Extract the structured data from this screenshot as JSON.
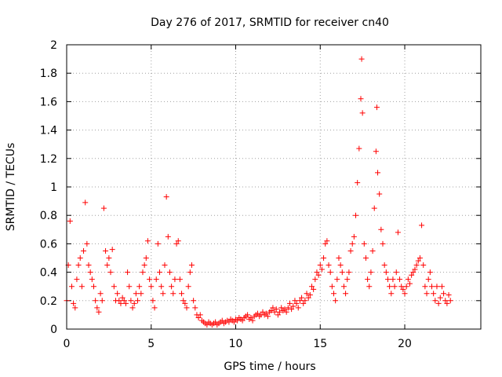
{
  "chart_data": {
    "type": "scatter",
    "title": "Day 276 of 2017, SRMTID for receiver cn40",
    "xlabel": "GPS time / hours",
    "ylabel": "SRMTID / TECUs",
    "xlim": [
      0,
      24.5
    ],
    "ylim": [
      0,
      2
    ],
    "x_ticks": [
      0,
      5,
      10,
      15,
      20
    ],
    "x_tick_labels": [
      "0",
      "5",
      "10",
      "15",
      "20"
    ],
    "y_ticks": [
      0,
      0.2,
      0.4,
      0.6,
      0.8,
      1,
      1.2,
      1.4,
      1.6,
      1.8,
      2
    ],
    "y_tick_labels": [
      "0",
      "0.2",
      "0.4",
      "0.6",
      "0.8",
      "1",
      "1.2",
      "1.4",
      "1.6",
      "1.8",
      "2"
    ],
    "grid": true,
    "marker": "+",
    "color": "#ff0000",
    "series": [
      {
        "name": "SRMTID",
        "x": [
          0.0,
          0.1,
          0.2,
          0.3,
          0.4,
          0.5,
          0.6,
          0.7,
          0.8,
          0.9,
          1.0,
          1.1,
          1.2,
          1.3,
          1.4,
          1.5,
          1.6,
          1.7,
          1.8,
          1.9,
          2.0,
          2.1,
          2.2,
          2.3,
          2.4,
          2.5,
          2.6,
          2.7,
          2.8,
          2.9,
          3.0,
          3.1,
          3.2,
          3.3,
          3.4,
          3.5,
          3.6,
          3.7,
          3.8,
          3.9,
          4.0,
          4.1,
          4.2,
          4.3,
          4.4,
          4.5,
          4.6,
          4.7,
          4.8,
          4.9,
          5.0,
          5.1,
          5.2,
          5.3,
          5.4,
          5.5,
          5.6,
          5.7,
          5.8,
          5.9,
          6.0,
          6.1,
          6.2,
          6.3,
          6.4,
          6.5,
          6.6,
          6.7,
          6.8,
          6.9,
          7.0,
          7.1,
          7.2,
          7.3,
          7.4,
          7.5,
          7.6,
          7.7,
          7.8,
          7.9,
          8.0,
          8.1,
          8.2,
          8.3,
          8.4,
          8.5,
          8.6,
          8.7,
          8.8,
          8.9,
          9.0,
          9.1,
          9.2,
          9.3,
          9.4,
          9.5,
          9.6,
          9.7,
          9.8,
          9.9,
          10.0,
          10.1,
          10.2,
          10.3,
          10.4,
          10.5,
          10.6,
          10.7,
          10.8,
          10.9,
          11.0,
          11.1,
          11.2,
          11.3,
          11.4,
          11.5,
          11.6,
          11.7,
          11.8,
          11.9,
          12.0,
          12.1,
          12.2,
          12.3,
          12.4,
          12.5,
          12.6,
          12.7,
          12.8,
          12.9,
          13.0,
          13.1,
          13.2,
          13.3,
          13.4,
          13.5,
          13.6,
          13.7,
          13.8,
          13.9,
          14.0,
          14.1,
          14.2,
          14.3,
          14.4,
          14.5,
          14.6,
          14.7,
          14.8,
          14.9,
          15.0,
          15.1,
          15.2,
          15.3,
          15.4,
          15.5,
          15.6,
          15.7,
          15.8,
          15.9,
          16.0,
          16.1,
          16.2,
          16.3,
          16.4,
          16.5,
          16.6,
          16.7,
          16.8,
          16.9,
          17.0,
          17.1,
          17.2,
          17.3,
          17.4,
          17.45,
          17.5,
          17.6,
          17.7,
          17.8,
          17.9,
          18.0,
          18.1,
          18.2,
          18.3,
          18.35,
          18.4,
          18.5,
          18.6,
          18.7,
          18.8,
          18.9,
          19.0,
          19.1,
          19.2,
          19.3,
          19.4,
          19.5,
          19.6,
          19.7,
          19.8,
          19.9,
          20.0,
          20.1,
          20.2,
          20.3,
          20.4,
          20.5,
          20.6,
          20.7,
          20.8,
          20.9,
          21.0,
          21.1,
          21.2,
          21.3,
          21.4,
          21.5,
          21.6,
          21.7,
          21.8,
          21.9,
          22.0,
          22.1,
          22.2,
          22.3,
          22.4,
          22.5,
          22.6,
          22.7
        ],
        "y": [
          0.2,
          0.45,
          0.76,
          0.3,
          0.18,
          0.15,
          0.35,
          0.45,
          0.5,
          0.3,
          0.55,
          0.89,
          0.6,
          0.45,
          0.4,
          0.35,
          0.3,
          0.2,
          0.15,
          0.12,
          0.25,
          0.2,
          0.85,
          0.55,
          0.45,
          0.5,
          0.4,
          0.56,
          0.3,
          0.2,
          0.25,
          0.2,
          0.18,
          0.22,
          0.2,
          0.18,
          0.4,
          0.3,
          0.2,
          0.15,
          0.18,
          0.25,
          0.2,
          0.3,
          0.25,
          0.4,
          0.45,
          0.5,
          0.62,
          0.35,
          0.3,
          0.2,
          0.15,
          0.35,
          0.6,
          0.4,
          0.3,
          0.25,
          0.45,
          0.93,
          0.65,
          0.4,
          0.3,
          0.25,
          0.35,
          0.6,
          0.62,
          0.35,
          0.25,
          0.2,
          0.18,
          0.15,
          0.3,
          0.4,
          0.45,
          0.2,
          0.15,
          0.1,
          0.08,
          0.1,
          0.06,
          0.05,
          0.04,
          0.03,
          0.05,
          0.04,
          0.03,
          0.04,
          0.05,
          0.03,
          0.04,
          0.05,
          0.06,
          0.04,
          0.05,
          0.06,
          0.05,
          0.07,
          0.06,
          0.05,
          0.07,
          0.06,
          0.08,
          0.07,
          0.06,
          0.08,
          0.09,
          0.1,
          0.07,
          0.08,
          0.06,
          0.09,
          0.1,
          0.11,
          0.09,
          0.1,
          0.12,
          0.1,
          0.11,
          0.09,
          0.12,
          0.13,
          0.15,
          0.12,
          0.14,
          0.1,
          0.12,
          0.15,
          0.13,
          0.14,
          0.12,
          0.15,
          0.18,
          0.14,
          0.16,
          0.2,
          0.18,
          0.15,
          0.2,
          0.22,
          0.18,
          0.2,
          0.25,
          0.22,
          0.24,
          0.3,
          0.28,
          0.35,
          0.4,
          0.38,
          0.45,
          0.42,
          0.5,
          0.6,
          0.62,
          0.45,
          0.4,
          0.3,
          0.25,
          0.2,
          0.35,
          0.5,
          0.45,
          0.4,
          0.3,
          0.25,
          0.35,
          0.4,
          0.55,
          0.6,
          0.65,
          0.8,
          1.03,
          1.27,
          1.62,
          1.9,
          1.52,
          0.6,
          0.5,
          0.35,
          0.3,
          0.4,
          0.55,
          0.85,
          1.25,
          1.56,
          1.1,
          0.95,
          0.7,
          0.6,
          0.45,
          0.4,
          0.35,
          0.3,
          0.25,
          0.35,
          0.3,
          0.4,
          0.68,
          0.35,
          0.3,
          0.28,
          0.25,
          0.3,
          0.35,
          0.32,
          0.38,
          0.4,
          0.42,
          0.45,
          0.48,
          0.5,
          0.73,
          0.45,
          0.3,
          0.25,
          0.35,
          0.4,
          0.3,
          0.25,
          0.2,
          0.3,
          0.18,
          0.22,
          0.3,
          0.25,
          0.2,
          0.18,
          0.24,
          0.2
        ]
      }
    ]
  }
}
